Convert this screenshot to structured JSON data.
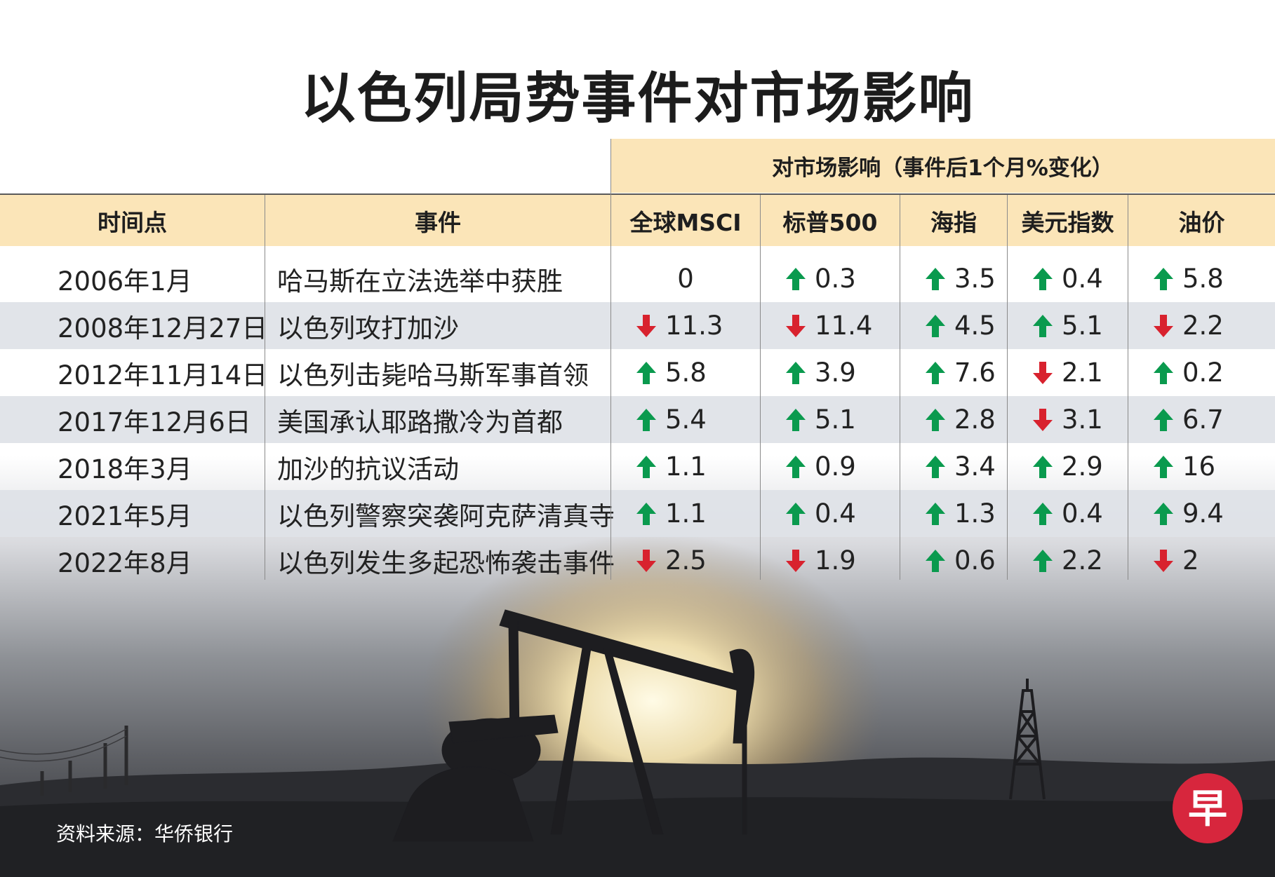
{
  "title": "以色列局势事件对市场影响",
  "impact_header": "对市场影响（事件后1个月%变化）",
  "columns": [
    "时间点",
    "事件",
    "全球MSCI",
    "标普500",
    "海指",
    "美元指数",
    "油价"
  ],
  "source": "资料来源：华侨银行",
  "logo_text": "早",
  "colors": {
    "up": "#0a9a4e",
    "down": "#d8222e",
    "header_bg": "#fbe5b8",
    "logo_red": "#d7263d"
  },
  "chart_data": {
    "type": "table",
    "title": "以色列局势事件对市场影响",
    "subtitle": "对市场影响（事件后1个月%变化）",
    "columns": [
      "时间点",
      "事件",
      "全球MSCI",
      "标普500",
      "海指",
      "美元指数",
      "油价"
    ],
    "rows": [
      {
        "date": "2006年1月",
        "event": "哈马斯在立法选举中获胜",
        "values": [
          {
            "dir": "none",
            "text": "0"
          },
          {
            "dir": "up",
            "text": "0.3"
          },
          {
            "dir": "up",
            "text": "3.5"
          },
          {
            "dir": "up",
            "text": "0.4"
          },
          {
            "dir": "up",
            "text": "5.8"
          }
        ]
      },
      {
        "date": "2008年12月27日",
        "event": "以色列攻打加沙",
        "values": [
          {
            "dir": "down",
            "text": "11.3"
          },
          {
            "dir": "down",
            "text": "11.4"
          },
          {
            "dir": "up",
            "text": "4.5"
          },
          {
            "dir": "up",
            "text": "5.1"
          },
          {
            "dir": "down",
            "text": "2.2"
          }
        ]
      },
      {
        "date": "2012年11月14日",
        "event": "以色列击毙哈马斯军事首领",
        "values": [
          {
            "dir": "up",
            "text": "5.8"
          },
          {
            "dir": "up",
            "text": "3.9"
          },
          {
            "dir": "up",
            "text": "7.6"
          },
          {
            "dir": "down",
            "text": "2.1"
          },
          {
            "dir": "up",
            "text": "0.2"
          }
        ]
      },
      {
        "date": "2017年12月6日",
        "event": "美国承认耶路撒冷为首都",
        "values": [
          {
            "dir": "up",
            "text": "5.4"
          },
          {
            "dir": "up",
            "text": "5.1"
          },
          {
            "dir": "up",
            "text": "2.8"
          },
          {
            "dir": "down",
            "text": "3.1"
          },
          {
            "dir": "up",
            "text": "6.7"
          }
        ]
      },
      {
        "date": "2018年3月",
        "event": "加沙的抗议活动",
        "values": [
          {
            "dir": "up",
            "text": "1.1"
          },
          {
            "dir": "up",
            "text": "0.9"
          },
          {
            "dir": "up",
            "text": "3.4"
          },
          {
            "dir": "up",
            "text": "2.9"
          },
          {
            "dir": "up",
            "text": "16"
          }
        ]
      },
      {
        "date": "2021年5月",
        "event": "以色列警察突袭阿克萨清真寺",
        "values": [
          {
            "dir": "up",
            "text": "1.1"
          },
          {
            "dir": "up",
            "text": "0.4"
          },
          {
            "dir": "up",
            "text": "1.3"
          },
          {
            "dir": "up",
            "text": "0.4"
          },
          {
            "dir": "up",
            "text": "9.4"
          }
        ]
      },
      {
        "date": "2022年8月",
        "event": "以色列发生多起恐怖袭击事件",
        "values": [
          {
            "dir": "down",
            "text": "2.5"
          },
          {
            "dir": "down",
            "text": "1.9"
          },
          {
            "dir": "up",
            "text": "0.6"
          },
          {
            "dir": "up",
            "text": "2.2"
          },
          {
            "dir": "down",
            "text": "2"
          }
        ]
      }
    ]
  }
}
